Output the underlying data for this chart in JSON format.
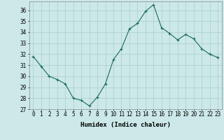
{
  "x": [
    0,
    1,
    2,
    3,
    4,
    5,
    6,
    7,
    8,
    9,
    10,
    11,
    12,
    13,
    14,
    15,
    16,
    17,
    18,
    19,
    20,
    21,
    22,
    23
  ],
  "y": [
    31.8,
    30.9,
    30.0,
    29.7,
    29.3,
    28.0,
    27.8,
    27.3,
    28.1,
    29.3,
    31.5,
    32.5,
    34.3,
    34.8,
    35.9,
    36.5,
    34.4,
    33.9,
    33.3,
    33.8,
    33.4,
    32.5,
    32.0,
    31.7
  ],
  "line_color": "#1a6b5a",
  "marker": "+",
  "bg_color": "#cce8e8",
  "grid_color": "#aacece",
  "xlabel": "Humidex (Indice chaleur)",
  "xlim": [
    -0.5,
    23.5
  ],
  "ylim": [
    27,
    36.8
  ],
  "yticks": [
    27,
    28,
    29,
    30,
    31,
    32,
    33,
    34,
    35,
    36
  ],
  "xticks": [
    0,
    1,
    2,
    3,
    4,
    5,
    6,
    7,
    8,
    9,
    10,
    11,
    12,
    13,
    14,
    15,
    16,
    17,
    18,
    19,
    20,
    21,
    22,
    23
  ],
  "xtick_labels": [
    "0",
    "1",
    "2",
    "3",
    "4",
    "5",
    "6",
    "7",
    "8",
    "9",
    "10",
    "11",
    "12",
    "13",
    "14",
    "15",
    "16",
    "17",
    "18",
    "19",
    "20",
    "21",
    "22",
    "23"
  ],
  "label_fontsize": 6.5,
  "tick_fontsize": 5.5
}
